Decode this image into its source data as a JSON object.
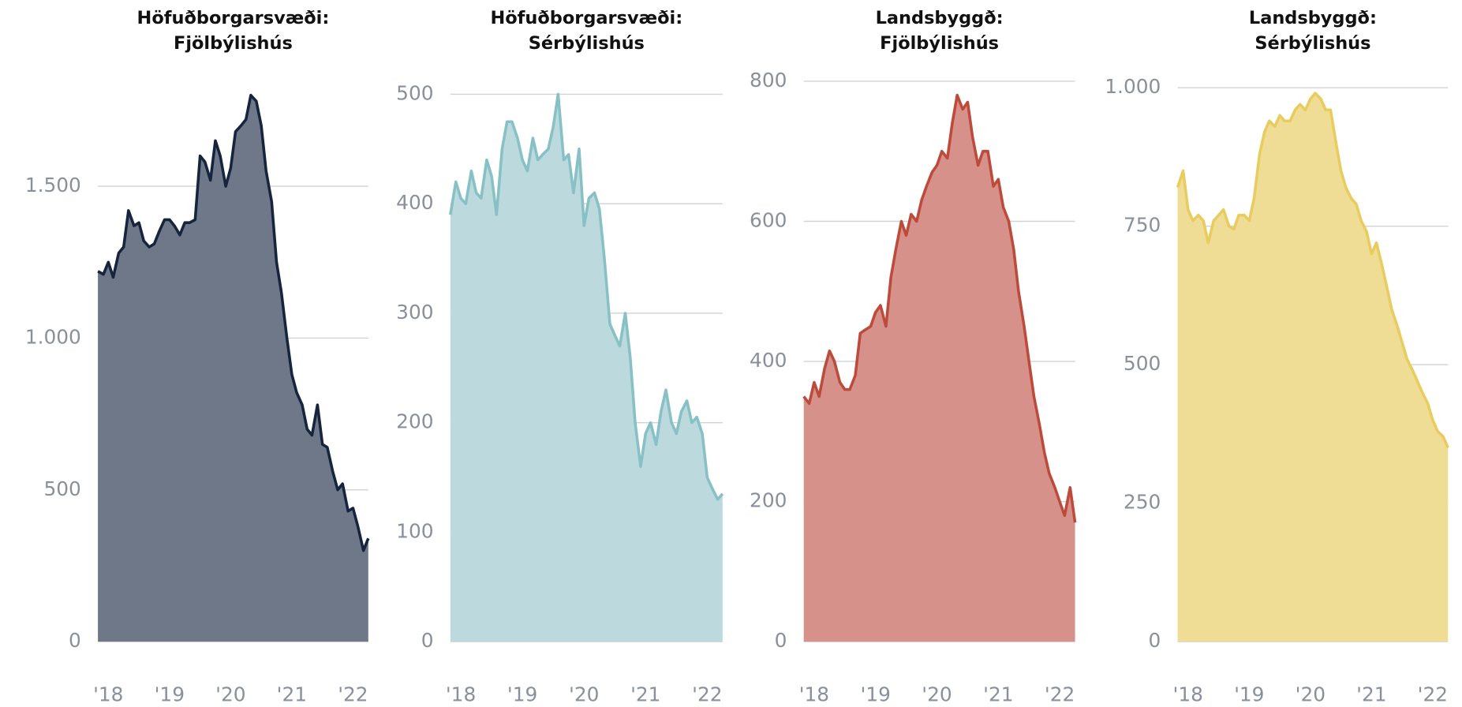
{
  "chart_data": [
    {
      "type": "area",
      "title": [
        "Höfuðborgarsvæði:",
        "Fjölbýlishús"
      ],
      "color": "#16243d",
      "fill": "#6e7889",
      "x": [
        2017.83,
        2017.92,
        2018,
        2018.08,
        2018.17,
        2018.25,
        2018.33,
        2018.42,
        2018.5,
        2018.58,
        2018.67,
        2018.75,
        2018.83,
        2018.92,
        2019,
        2019.08,
        2019.17,
        2019.25,
        2019.33,
        2019.42,
        2019.5,
        2019.58,
        2019.67,
        2019.75,
        2019.83,
        2019.92,
        2020,
        2020.08,
        2020.17,
        2020.25,
        2020.33,
        2020.42,
        2020.5,
        2020.58,
        2020.67,
        2020.75,
        2020.83,
        2020.92,
        2021,
        2021.08,
        2021.17,
        2021.25,
        2021.33,
        2021.42,
        2021.5,
        2021.58,
        2021.67,
        2021.75,
        2021.83,
        2021.92,
        2022,
        2022.08,
        2022.17,
        2022.25
      ],
      "values": [
        1220,
        1210,
        1250,
        1200,
        1280,
        1300,
        1420,
        1370,
        1380,
        1320,
        1300,
        1310,
        1350,
        1390,
        1390,
        1370,
        1340,
        1380,
        1380,
        1390,
        1600,
        1580,
        1520,
        1650,
        1600,
        1500,
        1560,
        1680,
        1700,
        1720,
        1800,
        1780,
        1700,
        1550,
        1450,
        1250,
        1150,
        1000,
        880,
        820,
        780,
        700,
        680,
        780,
        650,
        640,
        560,
        500,
        520,
        430,
        440,
        380,
        300,
        340
      ],
      "xlim": [
        2017.83,
        2022.25
      ],
      "xticks": [
        {
          "value": 2018,
          "label": "'18"
        },
        {
          "value": 2019,
          "label": "'19"
        },
        {
          "value": 2020,
          "label": "'20"
        },
        {
          "value": 2021,
          "label": "'21"
        },
        {
          "value": 2022,
          "label": "'22"
        }
      ],
      "ylim": [
        0,
        1800
      ],
      "yticks": [
        0,
        500,
        {
          "value": 1000,
          "label": "1.000"
        },
        {
          "value": 1500,
          "label": "1.500"
        }
      ],
      "grid": true
    },
    {
      "type": "area",
      "title": [
        "Höfuðborgarsvæði:",
        "Sérbýlishús"
      ],
      "color": "#87c0c5",
      "fill": "#bcdadd",
      "x": [
        2017.83,
        2017.92,
        2018,
        2018.08,
        2018.17,
        2018.25,
        2018.33,
        2018.42,
        2018.5,
        2018.58,
        2018.67,
        2018.75,
        2018.83,
        2018.92,
        2019,
        2019.08,
        2019.17,
        2019.25,
        2019.33,
        2019.42,
        2019.5,
        2019.58,
        2019.67,
        2019.75,
        2019.83,
        2019.92,
        2020,
        2020.08,
        2020.17,
        2020.25,
        2020.33,
        2020.42,
        2020.5,
        2020.58,
        2020.67,
        2020.75,
        2020.83,
        2020.92,
        2021,
        2021.08,
        2021.17,
        2021.25,
        2021.33,
        2021.42,
        2021.5,
        2021.58,
        2021.67,
        2021.75,
        2021.83,
        2021.92,
        2022,
        2022.08,
        2022.17,
        2022.25
      ],
      "values": [
        390,
        420,
        405,
        400,
        430,
        410,
        405,
        440,
        425,
        390,
        450,
        475,
        475,
        460,
        440,
        430,
        460,
        440,
        445,
        450,
        470,
        500,
        440,
        445,
        410,
        450,
        380,
        405,
        410,
        395,
        350,
        290,
        280,
        270,
        300,
        260,
        200,
        160,
        190,
        200,
        180,
        210,
        230,
        200,
        190,
        210,
        220,
        200,
        205,
        190,
        150,
        140,
        130,
        135
      ],
      "xlim": [
        2017.83,
        2022.25
      ],
      "xticks": [
        {
          "value": 2018,
          "label": "'18"
        },
        {
          "value": 2019,
          "label": "'19"
        },
        {
          "value": 2020,
          "label": "'20"
        },
        {
          "value": 2021,
          "label": "'21"
        },
        {
          "value": 2022,
          "label": "'22"
        }
      ],
      "ylim": [
        0,
        500
      ],
      "yticks": [
        0,
        100,
        200,
        300,
        400,
        500
      ],
      "grid": true
    },
    {
      "type": "area",
      "title": [
        "Landsbyggð:",
        "Fjölbýlishús"
      ],
      "color": "#bd4b3c",
      "fill": "#d6918a",
      "x": [
        2017.83,
        2017.92,
        2018,
        2018.08,
        2018.17,
        2018.25,
        2018.33,
        2018.42,
        2018.5,
        2018.58,
        2018.67,
        2018.75,
        2018.83,
        2018.92,
        2019,
        2019.08,
        2019.17,
        2019.25,
        2019.33,
        2019.42,
        2019.5,
        2019.58,
        2019.67,
        2019.75,
        2019.83,
        2019.92,
        2020,
        2020.08,
        2020.17,
        2020.25,
        2020.33,
        2020.42,
        2020.5,
        2020.58,
        2020.67,
        2020.75,
        2020.83,
        2020.92,
        2021,
        2021.08,
        2021.17,
        2021.25,
        2021.33,
        2021.42,
        2021.5,
        2021.58,
        2021.67,
        2021.75,
        2021.83,
        2021.92,
        2022,
        2022.08,
        2022.17,
        2022.25
      ],
      "values": [
        350,
        340,
        370,
        350,
        390,
        415,
        400,
        370,
        360,
        360,
        380,
        440,
        445,
        450,
        470,
        480,
        450,
        520,
        560,
        600,
        580,
        610,
        600,
        630,
        650,
        670,
        680,
        700,
        690,
        740,
        780,
        760,
        770,
        720,
        680,
        700,
        700,
        650,
        660,
        620,
        600,
        560,
        500,
        450,
        400,
        350,
        310,
        270,
        240,
        220,
        200,
        180,
        220,
        170
      ],
      "xlim": [
        2017.83,
        2022.25
      ],
      "xticks": [
        {
          "value": 2018,
          "label": "'18"
        },
        {
          "value": 2019,
          "label": "'19"
        },
        {
          "value": 2020,
          "label": "'20"
        },
        {
          "value": 2021,
          "label": "'21"
        },
        {
          "value": 2022,
          "label": "'22"
        }
      ],
      "ylim": [
        0,
        800
      ],
      "yticks": [
        0,
        200,
        400,
        600,
        800
      ],
      "grid": true
    },
    {
      "type": "area",
      "title": [
        "Landsbyggð:",
        "Sérbýlishús"
      ],
      "color": "#e8cc5e",
      "fill": "#efdd96",
      "x": [
        2017.83,
        2017.92,
        2018,
        2018.08,
        2018.17,
        2018.25,
        2018.33,
        2018.42,
        2018.5,
        2018.58,
        2018.67,
        2018.75,
        2018.83,
        2018.92,
        2019,
        2019.08,
        2019.17,
        2019.25,
        2019.33,
        2019.42,
        2019.5,
        2019.58,
        2019.67,
        2019.75,
        2019.83,
        2019.92,
        2020,
        2020.08,
        2020.17,
        2020.25,
        2020.33,
        2020.42,
        2020.5,
        2020.58,
        2020.67,
        2020.75,
        2020.83,
        2020.92,
        2021,
        2021.08,
        2021.17,
        2021.25,
        2021.33,
        2021.42,
        2021.5,
        2021.58,
        2021.67,
        2021.75,
        2021.83,
        2021.92,
        2022,
        2022.08,
        2022.17,
        2022.25
      ],
      "values": [
        820,
        850,
        780,
        760,
        770,
        760,
        720,
        760,
        770,
        780,
        750,
        745,
        770,
        770,
        760,
        800,
        880,
        920,
        940,
        930,
        950,
        940,
        940,
        960,
        970,
        960,
        980,
        990,
        980,
        960,
        960,
        900,
        850,
        820,
        800,
        790,
        760,
        740,
        700,
        720,
        680,
        640,
        600,
        570,
        540,
        510,
        490,
        470,
        450,
        430,
        400,
        380,
        370,
        350
      ],
      "xlim": [
        2017.83,
        2022.25
      ],
      "xticks": [
        {
          "value": 2018,
          "label": "'18"
        },
        {
          "value": 2019,
          "label": "'19"
        },
        {
          "value": 2020,
          "label": "'20"
        },
        {
          "value": 2021,
          "label": "'21"
        },
        {
          "value": 2022,
          "label": "'22"
        }
      ],
      "ylim": [
        0,
        1000
      ],
      "yticks": [
        0,
        250,
        500,
        750,
        {
          "value": 1000,
          "label": "1.000"
        }
      ],
      "grid": true
    }
  ]
}
